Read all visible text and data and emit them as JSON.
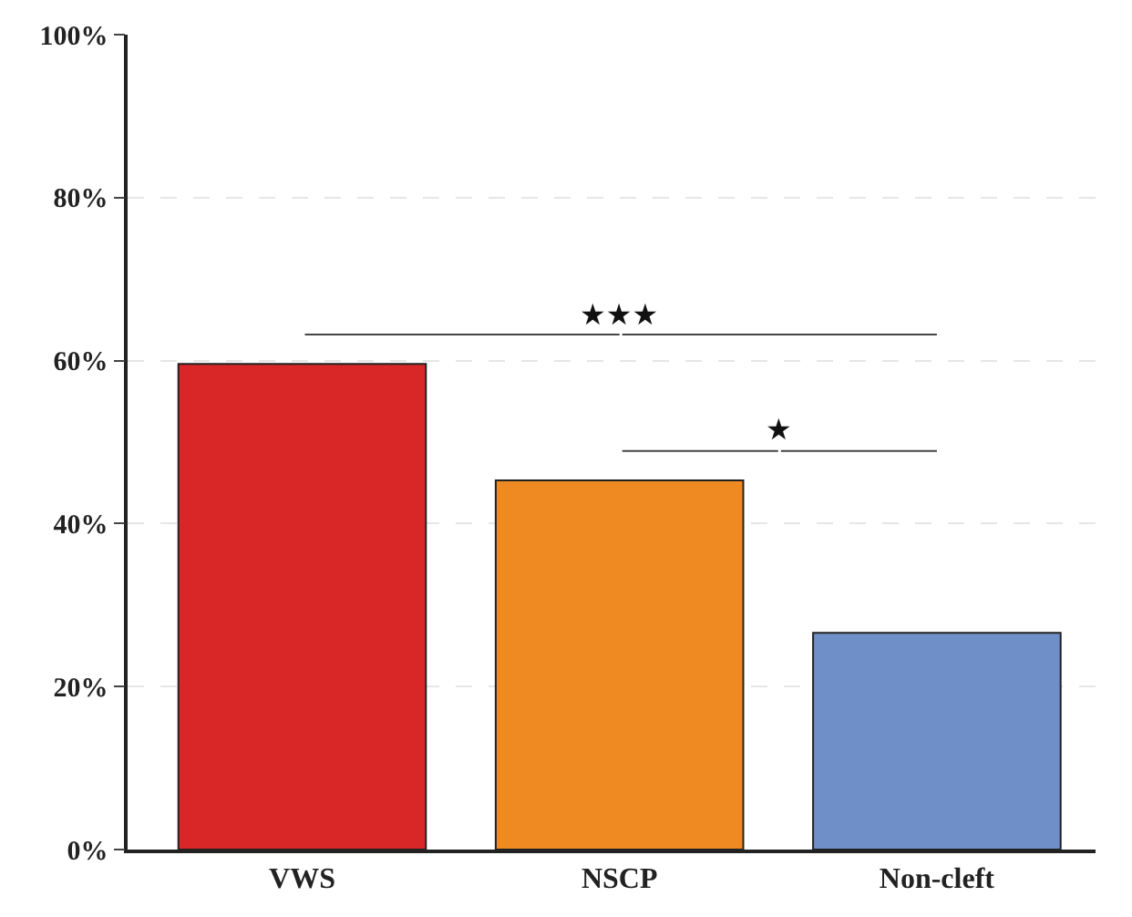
{
  "chart_data": {
    "type": "bar",
    "categories": [
      "VWS",
      "NSCP",
      "Non-cleft"
    ],
    "values": [
      59.6,
      45.3,
      26.6
    ],
    "colors": [
      "#d92727",
      "#ef8a22",
      "#6f8fc9"
    ],
    "ylim": [
      0,
      100
    ],
    "yticks": [
      {
        "value": 0,
        "label": "0%"
      },
      {
        "value": 20,
        "label": "20%"
      },
      {
        "value": 40,
        "label": "40%"
      },
      {
        "value": 60,
        "label": "60%"
      },
      {
        "value": 80,
        "label": "80%"
      },
      {
        "value": 100,
        "label": "100%"
      }
    ],
    "grid": "y",
    "annotations": [
      "★★★",
      "★"
    ]
  }
}
